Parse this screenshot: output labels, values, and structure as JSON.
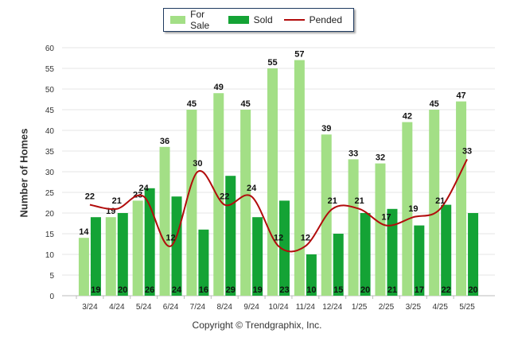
{
  "legend": {
    "for_sale": "For Sale",
    "sold": "Sold",
    "pended": "Pended"
  },
  "colors": {
    "for_sale": "#a3df86",
    "sold": "#14a335",
    "pended": "#b20c0c"
  },
  "footer": "Copyright © Trendgraphix, Inc.",
  "chart_data": {
    "type": "bar",
    "title": "",
    "xlabel": "",
    "ylabel": "Number of Homes",
    "ylim": [
      0,
      60
    ],
    "yticks": [
      0,
      5,
      10,
      15,
      20,
      25,
      30,
      35,
      40,
      45,
      50,
      55,
      60
    ],
    "grid": true,
    "legend_position": "top-center",
    "categories": [
      "3/24",
      "4/24",
      "5/24",
      "6/24",
      "7/24",
      "8/24",
      "9/24",
      "10/24",
      "11/24",
      "12/24",
      "1/25",
      "2/25",
      "3/25",
      "4/25",
      "5/25"
    ],
    "series": [
      {
        "name": "For Sale",
        "type": "bar",
        "values": [
          14,
          19,
          23,
          36,
          45,
          49,
          45,
          55,
          57,
          39,
          33,
          32,
          42,
          45,
          47
        ]
      },
      {
        "name": "Sold",
        "type": "bar",
        "values": [
          19,
          20,
          26,
          24,
          16,
          29,
          19,
          23,
          10,
          15,
          20,
          21,
          17,
          22,
          20
        ]
      },
      {
        "name": "Pended",
        "type": "line",
        "values": [
          22,
          21,
          24,
          12,
          30,
          22,
          24,
          12,
          12,
          21,
          21,
          17,
          19,
          21,
          33
        ]
      }
    ]
  }
}
